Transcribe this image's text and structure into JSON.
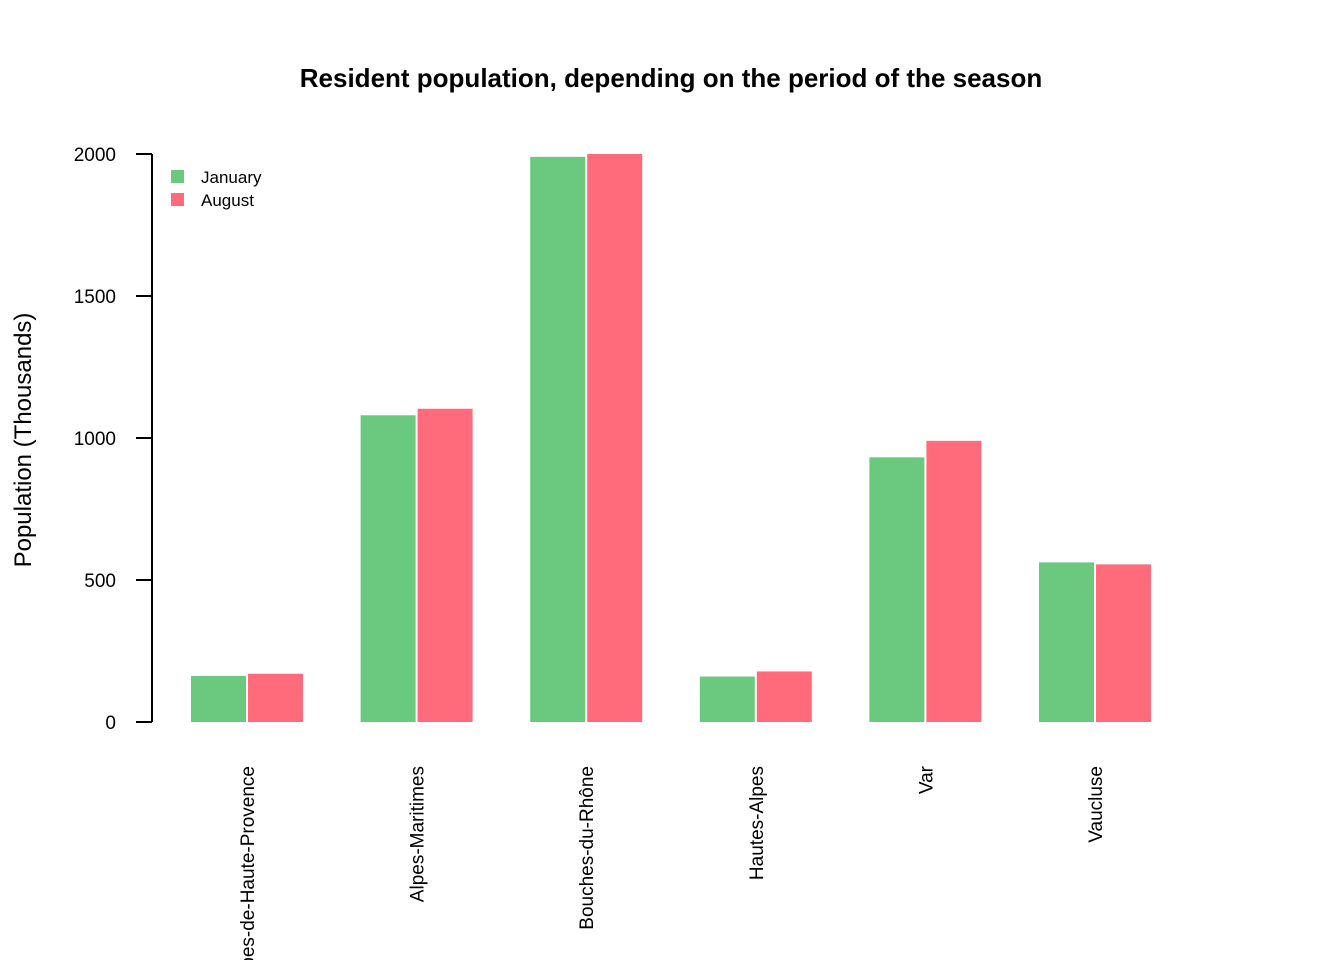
{
  "chart_data": {
    "type": "bar",
    "title": "Resident population, depending on the period of the season",
    "xlabel": "",
    "ylabel": "Population (Thousands)",
    "ylim": [
      0,
      2000
    ],
    "yticks": [
      "0",
      "500",
      "1000",
      "1500",
      "2000"
    ],
    "categories": [
      "Alpes-de-Haute-Provence",
      "Alpes-Maritimes",
      "Bouches-du-Rhône",
      "Hautes-Alpes",
      "Var",
      "Vaucluse"
    ],
    "series": [
      {
        "name": "January",
        "color": "#6BC97F",
        "values": [
          162,
          1080,
          1990,
          160,
          932,
          562
        ]
      },
      {
        "name": "August",
        "color": "#FF6B7B",
        "values": [
          170,
          1103,
          2000,
          178,
          990,
          555
        ]
      }
    ],
    "legend_position": "top-left",
    "grid": false
  }
}
